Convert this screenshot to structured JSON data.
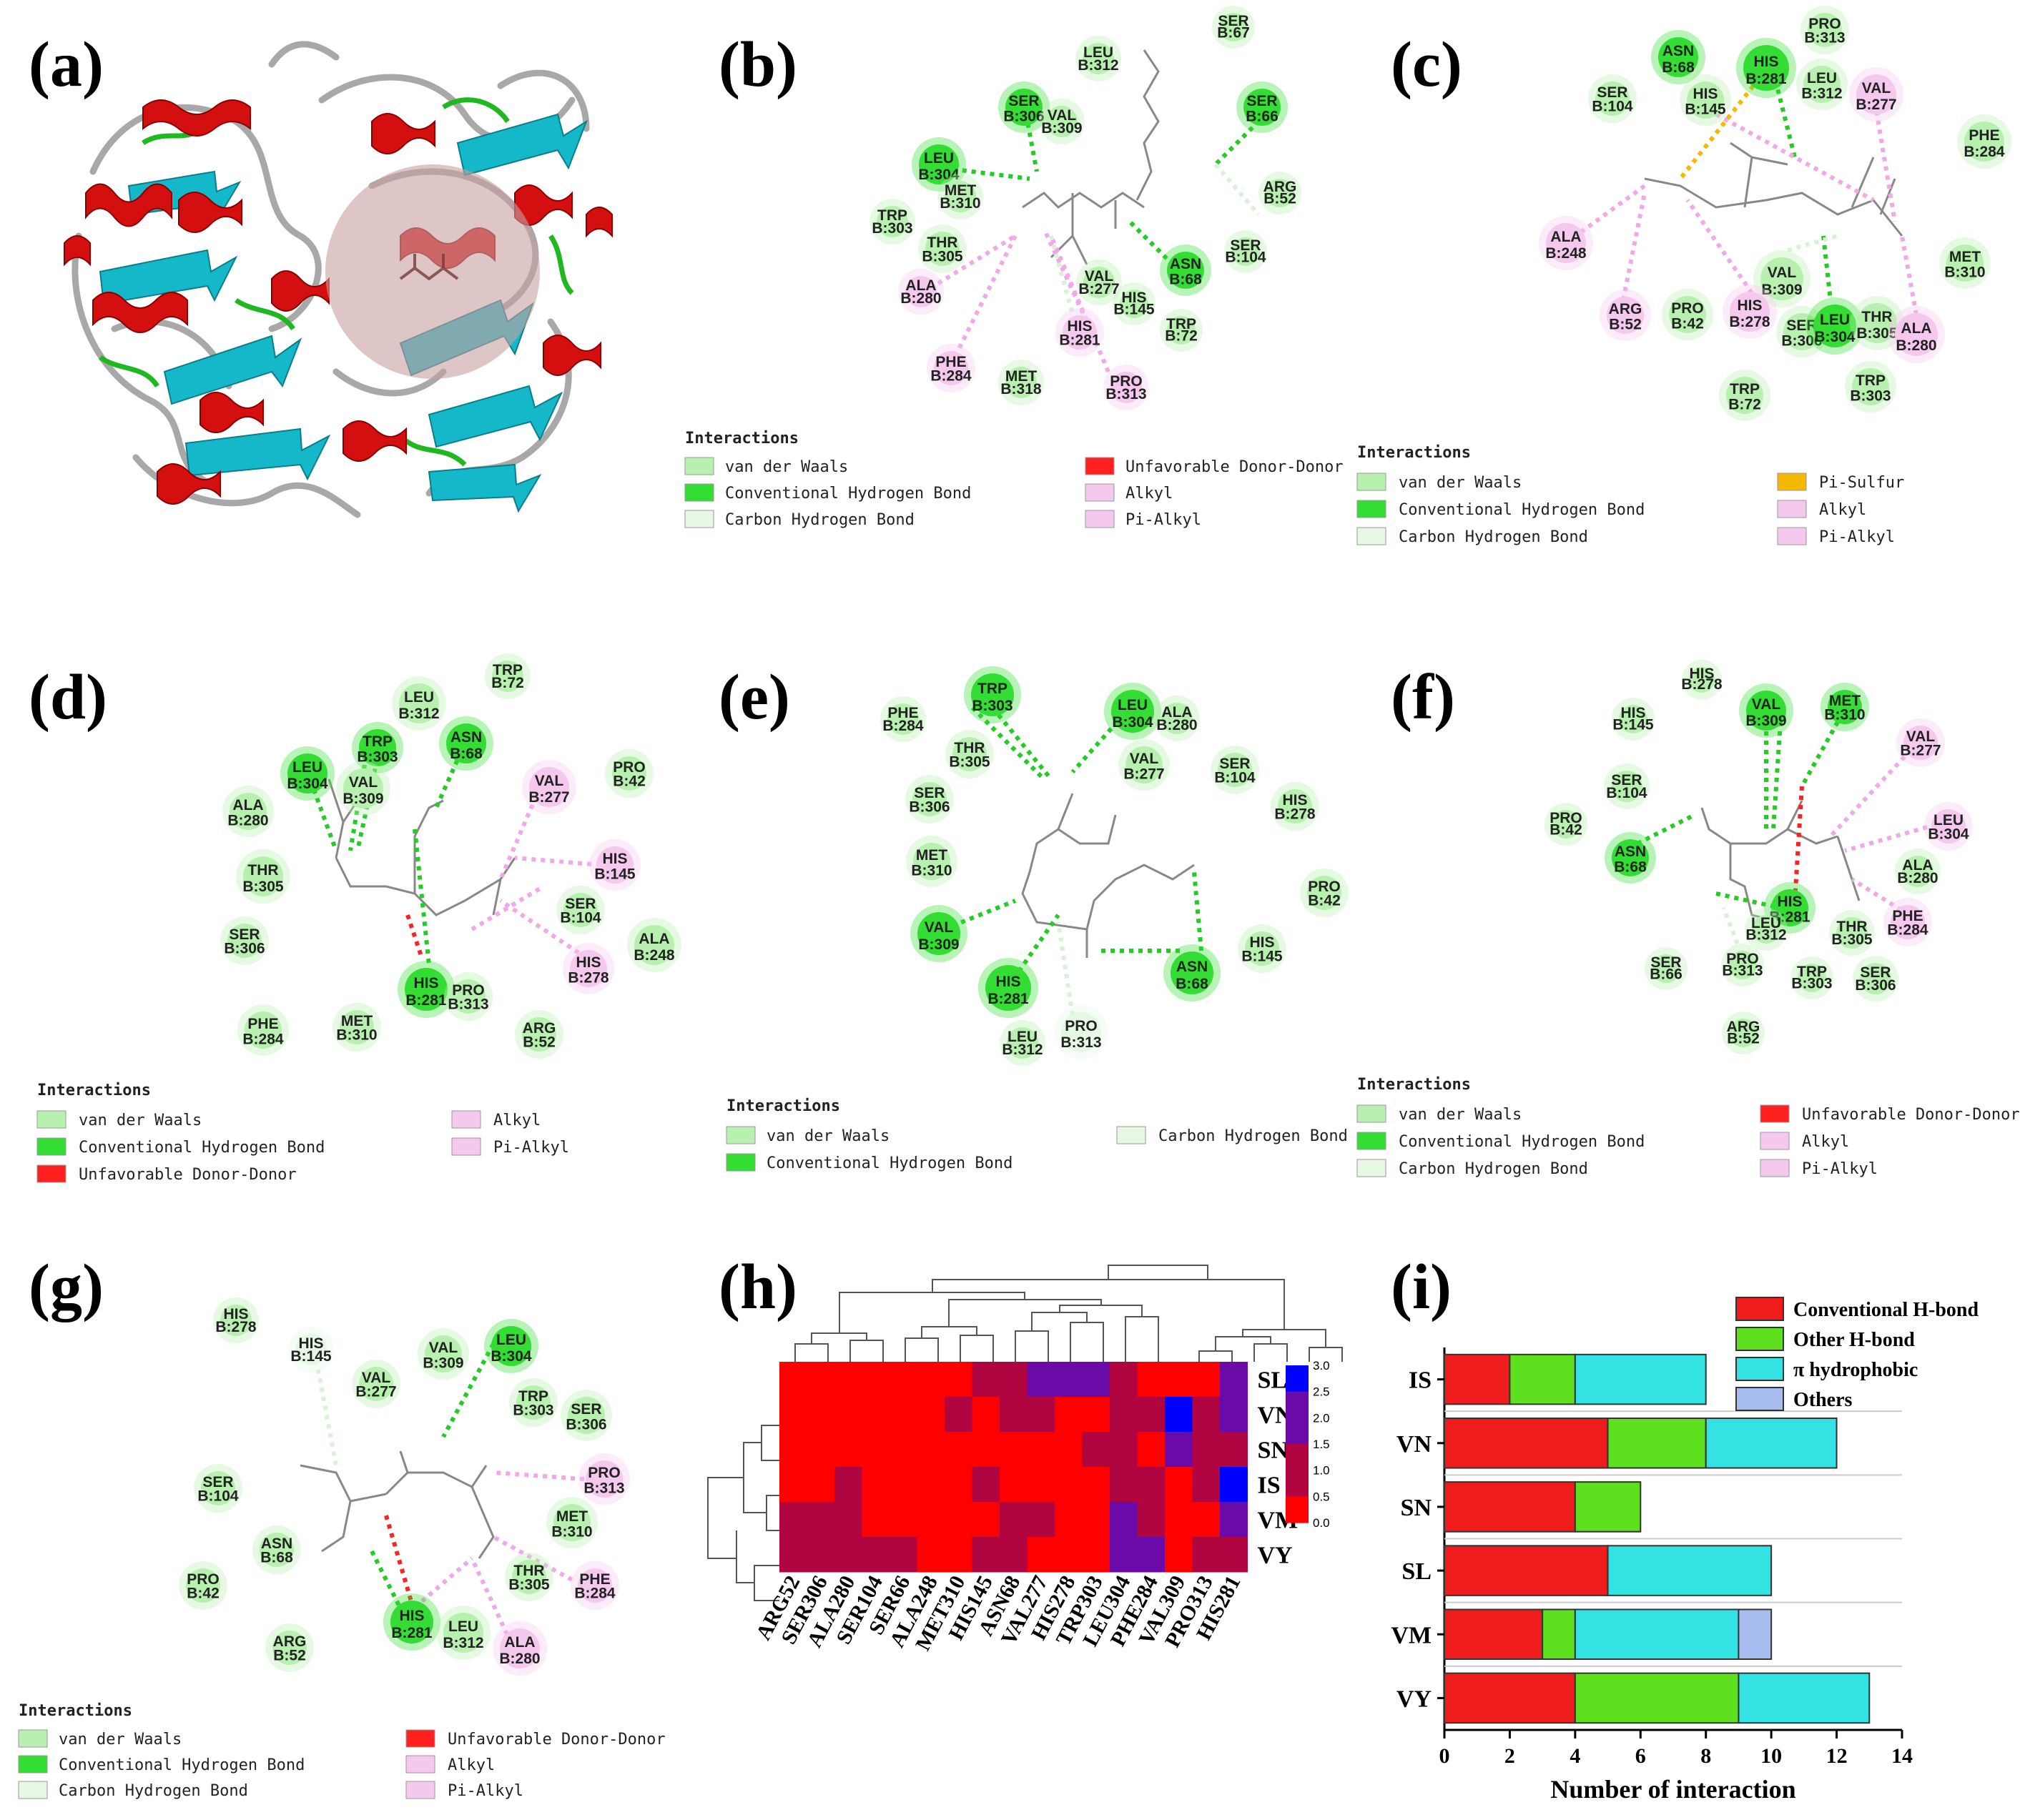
{
  "panels": {
    "a": "(a)",
    "b": "(b)",
    "c": "(c)",
    "d": "(d)",
    "e": "(e)",
    "f": "(f)",
    "g": "(g)",
    "h": "(h)",
    "i": "(i)"
  },
  "legend": {
    "title": "Interactions",
    "vdw": "van der Waals",
    "conv": "Conventional Hydrogen Bond",
    "carbon": "Carbon Hydrogen Bond",
    "unfav": "Unfavorable Donor-Donor",
    "alkyl": "Alkyl",
    "pialkyl": "Pi-Alkyl",
    "pisulfur": "Pi-Sulfur"
  },
  "colors": {
    "vdw": "#b8f0b0",
    "conv": "#33dd33",
    "carbon": "#e6f8e4",
    "unfav": "#ff2020",
    "alkyl": "#f5c8ee",
    "pisulfur": "#f5b800",
    "cell_red": "#ff0000",
    "cell_crimson": "#b00540",
    "cell_purple": "#6a0aa8",
    "cell_blue": "#0000ff"
  },
  "residues": {
    "b": [
      [
        "SER",
        "B:67",
        "vdw"
      ],
      [
        "LEU",
        "B:312",
        "vdw"
      ],
      [
        "SER",
        "B:66",
        "conv"
      ],
      [
        "SER",
        "B:306",
        "conv"
      ],
      [
        "VAL",
        "B:309",
        "vdw"
      ],
      [
        "LEU",
        "B:304",
        "conv"
      ],
      [
        "MET",
        "B:310",
        "vdw"
      ],
      [
        "ARG",
        "B:52",
        "vdw"
      ],
      [
        "TRP",
        "B:303",
        "vdw"
      ],
      [
        "THR",
        "B:305",
        "vdw"
      ],
      [
        "SER",
        "B:104",
        "vdw"
      ],
      [
        "ALA",
        "B:280",
        "alkyl"
      ],
      [
        "VAL",
        "B:277",
        "vdw"
      ],
      [
        "ASN",
        "B:68",
        "conv"
      ],
      [
        "HIS",
        "B:145",
        "vdw"
      ],
      [
        "HIS",
        "B:281",
        "alkyl"
      ],
      [
        "TRP",
        "B:72",
        "vdw"
      ],
      [
        "PHE",
        "B:284",
        "alkyl"
      ],
      [
        "MET",
        "B:318",
        "vdw"
      ],
      [
        "PRO",
        "B:313",
        "alkyl"
      ]
    ],
    "c": [
      [
        "ASN",
        "B:68",
        "conv"
      ],
      [
        "HIS",
        "B:281",
        "conv"
      ],
      [
        "PRO",
        "B:313",
        "vdw"
      ],
      [
        "SER",
        "B:104",
        "vdw"
      ],
      [
        "HIS",
        "B:145",
        "vdw"
      ],
      [
        "LEU",
        "B:312",
        "vdw"
      ],
      [
        "VAL",
        "B:277",
        "alkyl"
      ],
      [
        "PHE",
        "B:284",
        "vdw"
      ],
      [
        "MET",
        "B:310",
        "vdw"
      ],
      [
        "ALA",
        "B:248",
        "alkyl"
      ],
      [
        "VAL",
        "B:309",
        "vdw"
      ],
      [
        "ARG",
        "B:52",
        "alkyl"
      ],
      [
        "PRO",
        "B:42",
        "vdw"
      ],
      [
        "HIS",
        "B:278",
        "alkyl"
      ],
      [
        "SER",
        "B:306",
        "vdw"
      ],
      [
        "LEU",
        "B:304",
        "conv"
      ],
      [
        "THR",
        "B:305",
        "vdw"
      ],
      [
        "ALA",
        "B:280",
        "alkyl"
      ],
      [
        "TRP",
        "B:72",
        "vdw"
      ],
      [
        "TRP",
        "B:303",
        "vdw"
      ]
    ],
    "d": [
      [
        "TRP",
        "B:72",
        "vdw"
      ],
      [
        "LEU",
        "B:312",
        "vdw"
      ],
      [
        "ASN",
        "B:68",
        "conv"
      ],
      [
        "LEU",
        "B:304",
        "conv"
      ],
      [
        "TRP",
        "B:303",
        "conv"
      ],
      [
        "VAL",
        "B:309",
        "vdw"
      ],
      [
        "VAL",
        "B:277",
        "alkyl"
      ],
      [
        "PRO",
        "B:42",
        "vdw"
      ],
      [
        "ALA",
        "B:280",
        "vdw"
      ],
      [
        "HIS",
        "B:145",
        "alkyl"
      ],
      [
        "THR",
        "B:305",
        "vdw"
      ],
      [
        "SER",
        "B:104",
        "vdw"
      ],
      [
        "ALA",
        "B:248",
        "vdw"
      ],
      [
        "SER",
        "B:306",
        "vdw"
      ],
      [
        "HIS",
        "B:278",
        "alkyl"
      ],
      [
        "HIS",
        "B:281",
        "conv"
      ],
      [
        "PRO",
        "B:313",
        "vdw"
      ],
      [
        "PHE",
        "B:284",
        "vdw"
      ],
      [
        "MET",
        "B:310",
        "vdw"
      ],
      [
        "ARG",
        "B:52",
        "vdw"
      ]
    ],
    "e": [
      [
        "TRP",
        "B:303",
        "conv"
      ],
      [
        "LEU",
        "B:304",
        "conv"
      ],
      [
        "PHE",
        "B:284",
        "vdw"
      ],
      [
        "ALA",
        "B:280",
        "vdw"
      ],
      [
        "THR",
        "B:305",
        "vdw"
      ],
      [
        "VAL",
        "B:277",
        "vdw"
      ],
      [
        "SER",
        "B:104",
        "vdw"
      ],
      [
        "SER",
        "B:306",
        "vdw"
      ],
      [
        "HIS",
        "B:278",
        "vdw"
      ],
      [
        "MET",
        "B:310",
        "vdw"
      ],
      [
        "PRO",
        "B:42",
        "vdw"
      ],
      [
        "VAL",
        "B:309",
        "conv"
      ],
      [
        "HIS",
        "B:145",
        "vdw"
      ],
      [
        "ASN",
        "B:68",
        "conv"
      ],
      [
        "HIS",
        "B:281",
        "conv"
      ],
      [
        "PRO",
        "B:313",
        "carbon"
      ],
      [
        "LEU",
        "B:312",
        "vdw"
      ]
    ],
    "f": [
      [
        "HIS",
        "B:278",
        "vdw"
      ],
      [
        "HIS",
        "B:145",
        "vdw"
      ],
      [
        "VAL",
        "B:309",
        "conv"
      ],
      [
        "MET",
        "B:310",
        "conv"
      ],
      [
        "VAL",
        "B:277",
        "alkyl"
      ],
      [
        "SER",
        "B:104",
        "vdw"
      ],
      [
        "PRO",
        "B:42",
        "vdw"
      ],
      [
        "LEU",
        "B:304",
        "alkyl"
      ],
      [
        "ASN",
        "B:68",
        "conv"
      ],
      [
        "ALA",
        "B:280",
        "vdw"
      ],
      [
        "HIS",
        "B:281",
        "conv"
      ],
      [
        "PHE",
        "B:284",
        "alkyl"
      ],
      [
        "LEU",
        "B:312",
        "vdw"
      ],
      [
        "THR",
        "B:305",
        "vdw"
      ],
      [
        "SER",
        "B:66",
        "vdw"
      ],
      [
        "PRO",
        "B:313",
        "vdw"
      ],
      [
        "TRP",
        "B:303",
        "vdw"
      ],
      [
        "SER",
        "B:306",
        "vdw"
      ],
      [
        "ARG",
        "B:52",
        "vdw"
      ]
    ],
    "g": [
      [
        "HIS",
        "B:278",
        "vdw"
      ],
      [
        "HIS",
        "B:145",
        "carbon"
      ],
      [
        "VAL",
        "B:309",
        "vdw"
      ],
      [
        "LEU",
        "B:304",
        "conv"
      ],
      [
        "VAL",
        "B:277",
        "vdw"
      ],
      [
        "TRP",
        "B:303",
        "vdw"
      ],
      [
        "SER",
        "B:306",
        "vdw"
      ],
      [
        "SER",
        "B:104",
        "vdw"
      ],
      [
        "PRO",
        "B:313",
        "alkyl"
      ],
      [
        "MET",
        "B:310",
        "vdw"
      ],
      [
        "ASN",
        "B:68",
        "vdw"
      ],
      [
        "PRO",
        "B:42",
        "vdw"
      ],
      [
        "THR",
        "B:305",
        "vdw"
      ],
      [
        "PHE",
        "B:284",
        "alkyl"
      ],
      [
        "HIS",
        "B:281",
        "conv"
      ],
      [
        "LEU",
        "B:312",
        "vdw"
      ],
      [
        "ARG",
        "B:52",
        "vdw"
      ],
      [
        "ALA",
        "B:280",
        "alkyl"
      ]
    ]
  },
  "chart_data": [
    {
      "type": "heatmap",
      "title": "(h)",
      "columns": [
        "ARG52",
        "SER306",
        "ALA280",
        "SER104",
        "SER66",
        "ALA248",
        "MET310",
        "HIS145",
        "ASN68",
        "VAL277",
        "HIS278",
        "TRP303",
        "LEU304",
        "PHE284",
        "VAL309",
        "PRO313",
        "HIS281"
      ],
      "rows": [
        "SL",
        "VN",
        "SN",
        "IS",
        "VM",
        "VY"
      ],
      "values": [
        [
          0,
          0,
          0,
          0,
          0,
          0,
          0,
          1,
          1,
          2,
          2,
          2,
          1,
          0,
          0,
          0,
          2
        ],
        [
          0,
          0,
          0,
          0,
          0,
          0,
          1,
          0,
          1,
          1,
          0,
          0,
          1,
          1,
          3,
          1,
          2
        ],
        [
          0,
          0,
          0,
          0,
          0,
          0,
          0,
          0,
          0,
          0,
          0,
          1,
          1,
          0,
          2,
          1,
          1
        ],
        [
          0,
          0,
          1,
          0,
          0,
          0,
          0,
          1,
          0,
          0,
          0,
          0,
          1,
          1,
          0,
          1,
          3
        ],
        [
          1,
          1,
          1,
          0,
          0,
          0,
          0,
          0,
          1,
          1,
          0,
          0,
          2,
          1,
          0,
          0,
          2
        ],
        [
          1,
          1,
          1,
          1,
          1,
          0,
          0,
          1,
          1,
          0,
          0,
          0,
          2,
          2,
          0,
          1,
          1
        ]
      ],
      "colorbar": {
        "min": 0.0,
        "max": 3.0,
        "ticks": [
          "0.0",
          "0.5",
          "1.0",
          "1.5",
          "2.0",
          "2.5",
          "3.0"
        ]
      }
    },
    {
      "type": "bar",
      "orientation": "horizontal",
      "stacked": true,
      "title": "(i)",
      "categories": [
        "IS",
        "VN",
        "SN",
        "SL",
        "VM",
        "VY"
      ],
      "series": [
        {
          "name": "Conventional H-bond",
          "color": "#ee1c1c",
          "values": [
            2,
            5,
            4,
            5,
            3,
            4
          ]
        },
        {
          "name": "Other H-bond",
          "color": "#5ee01e",
          "values": [
            2,
            3,
            2,
            0,
            1,
            5
          ]
        },
        {
          "name": "π hydrophobic",
          "color": "#33e3e3",
          "values": [
            4,
            4,
            0,
            5,
            5,
            4
          ]
        },
        {
          "name": "Others",
          "color": "#a7bdf0",
          "values": [
            0,
            0,
            0,
            0,
            1,
            0
          ]
        }
      ],
      "xlabel": "Number of interaction",
      "xlim": [
        0,
        14
      ],
      "xticks": [
        "0",
        "2",
        "4",
        "6",
        "8",
        "10",
        "12",
        "14"
      ]
    }
  ]
}
